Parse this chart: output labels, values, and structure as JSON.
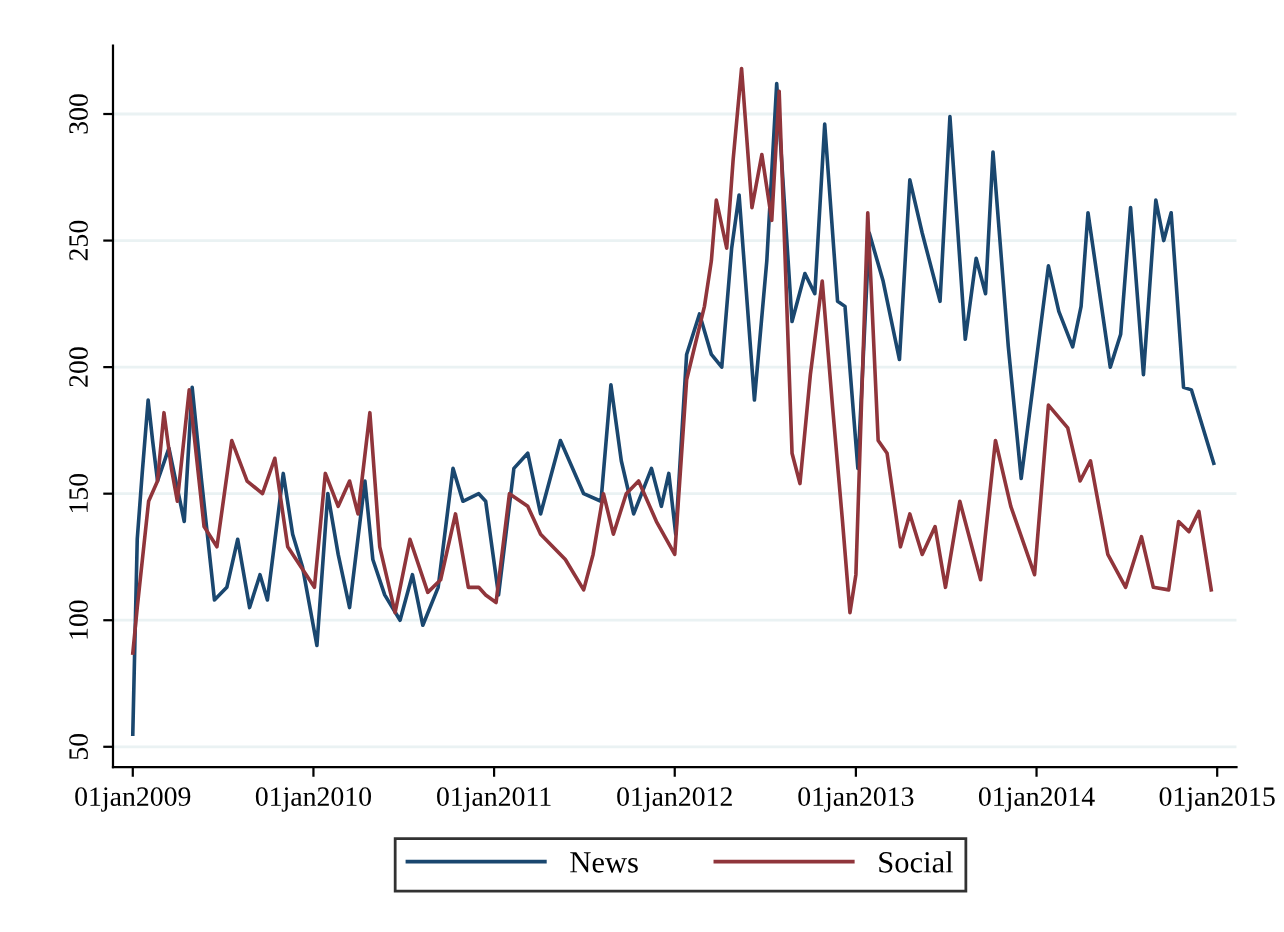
{
  "chart_data": {
    "type": "line",
    "xlim": [
      "2008-11-22",
      "2015-02-09"
    ],
    "ylim": [
      42,
      327
    ],
    "xticks": [
      {
        "value": "2009-01-01",
        "label": "01jan2009"
      },
      {
        "value": "2010-01-01",
        "label": "01jan2010"
      },
      {
        "value": "2011-01-01",
        "label": "01jan2011"
      },
      {
        "value": "2012-01-01",
        "label": "01jan2012"
      },
      {
        "value": "2013-01-01",
        "label": "01jan2013"
      },
      {
        "value": "2014-01-01",
        "label": "01jan2014"
      },
      {
        "value": "2015-01-01",
        "label": "01jan2015"
      }
    ],
    "yticks": [
      50,
      100,
      150,
      200,
      250,
      300
    ],
    "grid": "y",
    "legend": "bottom",
    "marker": "none",
    "line_style": "solid",
    "series": [
      {
        "name": "News",
        "color": "#1a476f",
        "x": [
          "2009-01-01",
          "2009-01-10",
          "2009-01-20",
          "2009-02-01",
          "2009-02-10",
          "2009-02-20",
          "2009-03-15",
          "2009-04-15",
          "2009-05-01",
          "2009-05-20",
          "2009-06-15",
          "2009-07-10",
          "2009-08-01",
          "2009-08-25",
          "2009-09-15",
          "2009-09-30",
          "2009-11-01",
          "2009-11-20",
          "2009-12-10",
          "2010-01-08",
          "2010-01-30",
          "2010-02-20",
          "2010-03-15",
          "2010-04-15",
          "2010-05-01",
          "2010-05-25",
          "2010-06-25",
          "2010-07-20",
          "2010-08-10",
          "2010-09-10",
          "2010-10-10",
          "2010-10-30",
          "2010-12-01",
          "2010-12-15",
          "2011-01-10",
          "2011-02-10",
          "2011-03-10",
          "2011-04-05",
          "2011-05-15",
          "2011-07-01",
          "2011-08-05",
          "2011-08-25",
          "2011-09-15",
          "2011-10-10",
          "2011-11-15",
          "2011-12-05",
          "2011-12-20",
          "2012-01-03",
          "2012-01-25",
          "2012-02-20",
          "2012-03-15",
          "2012-04-05",
          "2012-04-25",
          "2012-05-10",
          "2012-06-10",
          "2012-07-05",
          "2012-07-25",
          "2012-08-25",
          "2012-09-20",
          "2012-10-10",
          "2012-10-30",
          "2012-11-25",
          "2012-12-10",
          "2013-01-05",
          "2013-01-28",
          "2013-02-25",
          "2013-03-30",
          "2013-04-20",
          "2013-05-15",
          "2013-06-20",
          "2013-07-10",
          "2013-08-10",
          "2013-09-01",
          "2013-09-20",
          "2013-10-05",
          "2013-11-05",
          "2013-12-01",
          "2014-01-25",
          "2014-02-15",
          "2014-03-15",
          "2014-04-01",
          "2014-04-15",
          "2014-05-30",
          "2014-06-20",
          "2014-07-10",
          "2014-08-05",
          "2014-08-30",
          "2014-09-15",
          "2014-09-30",
          "2014-10-25",
          "2014-11-10",
          "2014-12-25"
        ],
        "values": [
          55,
          132,
          158,
          187,
          171,
          155,
          168,
          139,
          192,
          155,
          108,
          113,
          132,
          105,
          118,
          108,
          158,
          134,
          121,
          90,
          150,
          126,
          105,
          155,
          124,
          110,
          100,
          118,
          98,
          113,
          160,
          147,
          150,
          147,
          110,
          160,
          166,
          142,
          171,
          150,
          147,
          193,
          163,
          142,
          160,
          145,
          158,
          134,
          205,
          221,
          205,
          200,
          247,
          268,
          187,
          242,
          312,
          218,
          237,
          229,
          296,
          226,
          224,
          160,
          253,
          234,
          203,
          274,
          253,
          226,
          299,
          211,
          243,
          229,
          285,
          208,
          156,
          240,
          222,
          208,
          224,
          261,
          200,
          213,
          263,
          197,
          266,
          250,
          261,
          192,
          191,
          162
        ]
      },
      {
        "name": "Social",
        "color": "#90353b",
        "x": [
          "2009-01-01",
          "2009-01-10",
          "2009-02-02",
          "2009-02-20",
          "2009-03-05",
          "2009-03-20",
          "2009-04-01",
          "2009-04-25",
          "2009-05-25",
          "2009-06-20",
          "2009-07-20",
          "2009-08-20",
          "2009-09-20",
          "2009-10-15",
          "2009-11-10",
          "2010-01-03",
          "2010-01-25",
          "2010-02-20",
          "2010-03-15",
          "2010-04-01",
          "2010-04-25",
          "2010-05-15",
          "2010-06-15",
          "2010-07-15",
          "2010-08-20",
          "2010-09-15",
          "2010-10-15",
          "2010-11-10",
          "2010-12-01",
          "2010-12-15",
          "2011-01-05",
          "2011-02-01",
          "2011-03-10",
          "2011-04-05",
          "2011-05-25",
          "2011-07-01",
          "2011-07-20",
          "2011-08-10",
          "2011-08-30",
          "2011-09-25",
          "2011-10-20",
          "2011-11-25",
          "2012-01-01",
          "2012-01-25",
          "2012-03-01",
          "2012-03-15",
          "2012-03-25",
          "2012-04-15",
          "2012-04-28",
          "2012-05-15",
          "2012-06-05",
          "2012-06-25",
          "2012-07-15",
          "2012-07-30",
          "2012-08-25",
          "2012-09-10",
          "2012-10-01",
          "2012-10-25",
          "2012-11-15",
          "2012-12-05",
          "2012-12-20",
          "2013-01-01",
          "2013-01-25",
          "2013-02-15",
          "2013-03-05",
          "2013-04-01",
          "2013-04-20",
          "2013-05-15",
          "2013-06-10",
          "2013-07-01",
          "2013-07-30",
          "2013-09-10",
          "2013-10-10",
          "2013-11-10",
          "2013-12-28",
          "2014-01-25",
          "2014-03-05",
          "2014-03-30",
          "2014-04-20",
          "2014-05-25",
          "2014-06-30",
          "2014-08-01",
          "2014-08-25",
          "2014-09-25",
          "2014-10-15",
          "2014-11-05",
          "2014-11-25",
          "2014-12-20"
        ],
        "values": [
          87,
          105,
          147,
          155,
          182,
          160,
          147,
          191,
          137,
          129,
          171,
          155,
          150,
          164,
          129,
          113,
          158,
          145,
          155,
          142,
          182,
          129,
          103,
          132,
          111,
          116,
          142,
          113,
          113,
          110,
          107,
          150,
          145,
          134,
          124,
          112,
          126,
          150,
          134,
          150,
          155,
          139,
          126,
          195,
          224,
          242,
          266,
          247,
          282,
          318,
          263,
          284,
          258,
          309,
          166,
          154,
          197,
          234,
          184,
          139,
          103,
          118,
          261,
          171,
          166,
          129,
          142,
          126,
          137,
          113,
          147,
          116,
          171,
          145,
          118,
          185,
          176,
          155,
          163,
          126,
          113,
          133,
          113,
          112,
          139,
          135,
          143,
          112
        ]
      }
    ]
  }
}
